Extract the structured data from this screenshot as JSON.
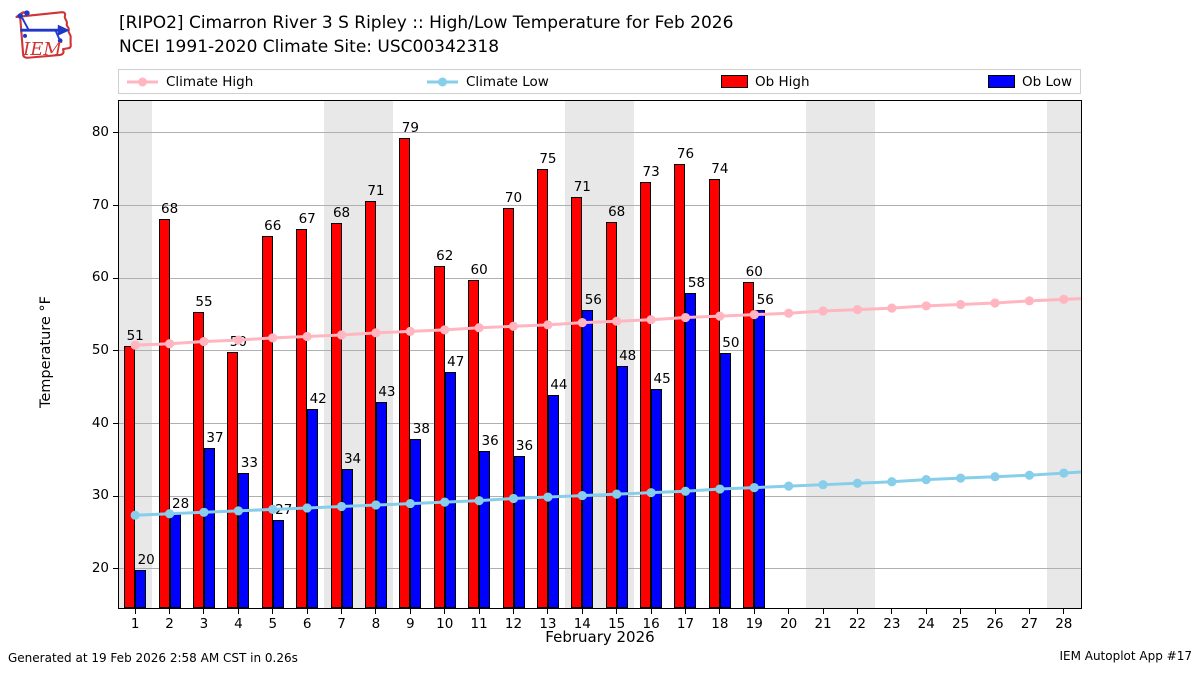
{
  "header": {
    "title_line1": "[RIPO2] Cimarron River 3 S Ripley :: High/Low Temperature for Feb 2026",
    "title_line2": "NCEI 1991-2020 Climate Site: USC00342318",
    "logo_text": "IEM"
  },
  "legend": {
    "items": [
      {
        "label": "Climate High",
        "type": "line",
        "color": "#ffb6c1"
      },
      {
        "label": "Climate Low",
        "type": "line",
        "color": "#87ceeb"
      },
      {
        "label": "Ob High",
        "type": "swatch",
        "color": "#ff0000"
      },
      {
        "label": "Ob Low",
        "type": "swatch",
        "color": "#0000ff"
      }
    ]
  },
  "footer": {
    "left": "Generated at 19 Feb 2026 2:58 AM CST in 0.26s",
    "right": "IEM Autoplot App #17"
  },
  "chart_data": {
    "type": "bar",
    "title": "[RIPO2] Cimarron River 3 S Ripley :: High/Low Temperature for Feb 2026",
    "subtitle": "NCEI 1991-2020 Climate Site: USC00342318",
    "xlabel": "February 2026",
    "ylabel": "Temperature °F",
    "x": [
      1,
      2,
      3,
      4,
      5,
      6,
      7,
      8,
      9,
      10,
      11,
      12,
      13,
      14,
      15,
      16,
      17,
      18,
      19,
      20,
      21,
      22,
      23,
      24,
      25,
      26,
      27,
      28
    ],
    "xtick_labels": [
      "1",
      "2",
      "3",
      "4",
      "5",
      "6",
      "7",
      "8",
      "9",
      "10",
      "11",
      "12",
      "13",
      "14",
      "15",
      "16",
      "17",
      "18",
      "19",
      "20",
      "21",
      "22",
      "23",
      "24",
      "25",
      "26",
      "27",
      "28"
    ],
    "yticks": [
      20,
      30,
      40,
      50,
      60,
      70,
      80
    ],
    "ylim": [
      14.6,
      84.5
    ],
    "grid": true,
    "legend_position": "top",
    "weekend_bands": [
      [
        0.5,
        1.5
      ],
      [
        6.5,
        8.5
      ],
      [
        13.5,
        15.5
      ],
      [
        20.5,
        22.5
      ],
      [
        27.5,
        28.5
      ]
    ],
    "series": [
      {
        "name": "Climate High",
        "type": "line",
        "color": "#ffb6c1",
        "values": [
          50.8,
          51.0,
          51.3,
          51.5,
          51.8,
          52.0,
          52.2,
          52.5,
          52.7,
          52.9,
          53.2,
          53.4,
          53.6,
          53.9,
          54.1,
          54.3,
          54.6,
          54.8,
          55.0,
          55.2,
          55.5,
          55.7,
          55.9,
          56.2,
          56.4,
          56.6,
          56.9,
          57.1
        ]
      },
      {
        "name": "Climate Low",
        "type": "line",
        "color": "#87ceeb",
        "values": [
          27.4,
          27.6,
          27.8,
          28.0,
          28.2,
          28.4,
          28.6,
          28.8,
          29.0,
          29.2,
          29.4,
          29.7,
          29.9,
          30.1,
          30.3,
          30.5,
          30.7,
          31.0,
          31.2,
          31.4,
          31.6,
          31.8,
          32.0,
          32.3,
          32.5,
          32.7,
          32.9,
          33.2
        ]
      },
      {
        "name": "Ob High",
        "type": "bar",
        "color": "#ff0000",
        "values": [
          50.7,
          68.2,
          55.3,
          49.8,
          65.8,
          66.8,
          67.6,
          70.7,
          79.3,
          61.7,
          59.7,
          69.7,
          75.0,
          71.2,
          67.7,
          73.3,
          75.7,
          73.6,
          59.5
        ],
        "labels": [
          "51",
          "68",
          "55",
          "50",
          "66",
          "67",
          "68",
          "71",
          "79",
          "62",
          "60",
          "70",
          "75",
          "71",
          "68",
          "73",
          "76",
          "74",
          "60"
        ]
      },
      {
        "name": "Ob Low",
        "type": "bar",
        "color": "#0000ff",
        "values": [
          19.8,
          27.5,
          36.7,
          33.2,
          26.8,
          42.0,
          33.8,
          43.0,
          37.9,
          47.1,
          36.3,
          35.6,
          44.0,
          55.6,
          48.0,
          44.7,
          58.0,
          49.7,
          55.7
        ],
        "labels": [
          "20",
          "28",
          "37",
          "33",
          "27",
          "42",
          "34",
          "43",
          "38",
          "47",
          "36",
          "36",
          "44",
          "56",
          "48",
          "45",
          "58",
          "50",
          "56"
        ]
      }
    ]
  }
}
